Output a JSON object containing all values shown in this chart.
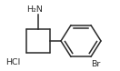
{
  "bg_color": "#ffffff",
  "line_color": "#2a2a2a",
  "text_color": "#2a2a2a",
  "line_width": 1.1,
  "font_size": 6.8,
  "figsize": [
    1.32,
    0.78
  ],
  "dpi": 100,
  "H2N_label": "H₂N",
  "HCl_label": "HCl",
  "Br_label": "Br",
  "aspect": 0.5909
}
